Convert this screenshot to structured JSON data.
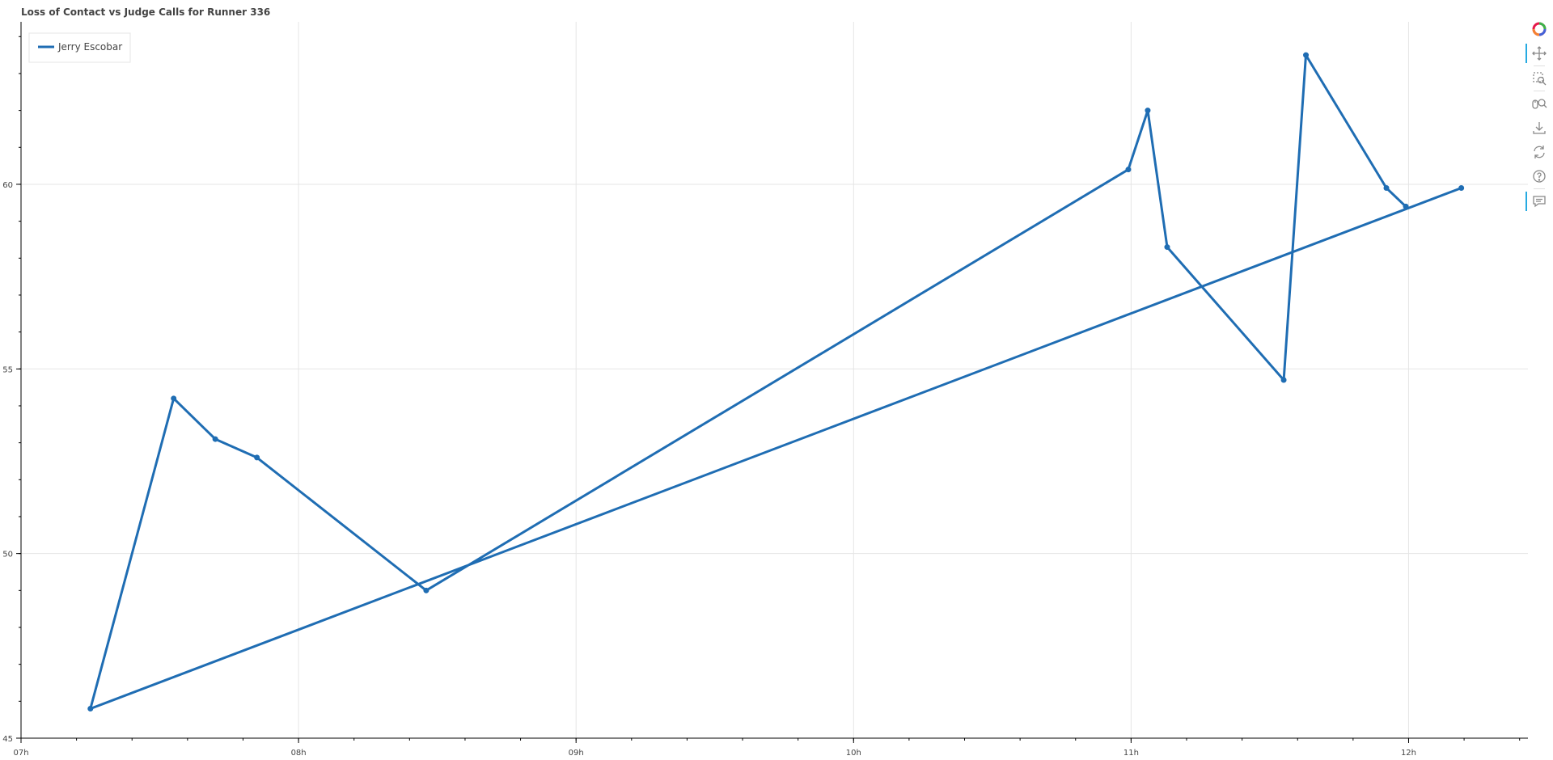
{
  "chart_data": {
    "type": "line",
    "title": "Loss of Contact vs Judge Calls for Runner 336",
    "xlabel": "",
    "ylabel": "",
    "x_unit": "hours",
    "xlim": [
      7.0,
      12.43
    ],
    "ylim": [
      45.0,
      64.4
    ],
    "x_ticks": [
      7,
      8,
      9,
      10,
      11,
      12
    ],
    "x_tick_labels": [
      "07h",
      "08h",
      "09h",
      "10h",
      "11h",
      "12h"
    ],
    "y_ticks": [
      45,
      50,
      55,
      60
    ],
    "y_tick_labels": [
      "45",
      "50",
      "55",
      "60"
    ],
    "grid": true,
    "legend_position": "top-left",
    "series": [
      {
        "name": "Jerry Escobar",
        "color": "#1f6db3",
        "x": [
          11.99,
          11.92,
          11.63,
          11.55,
          11.13,
          11.06,
          10.99,
          8.46,
          7.85,
          7.7,
          7.55,
          7.25,
          12.19
        ],
        "y": [
          59.4,
          59.9,
          63.5,
          54.7,
          58.3,
          62.0,
          60.4,
          49.0,
          52.6,
          53.1,
          54.2,
          45.8,
          59.9
        ]
      }
    ]
  },
  "toolbar": {
    "tools": [
      {
        "name": "bokeh-logo-icon",
        "active": false
      },
      {
        "name": "pan-icon",
        "active": true
      },
      {
        "name": "box-zoom-icon",
        "active": false
      },
      {
        "name": "wheel-zoom-icon",
        "active": false
      },
      {
        "name": "save-icon",
        "active": false
      },
      {
        "name": "reset-icon",
        "active": false
      },
      {
        "name": "help-icon",
        "active": false
      },
      {
        "name": "hover-icon",
        "active": true
      }
    ]
  }
}
